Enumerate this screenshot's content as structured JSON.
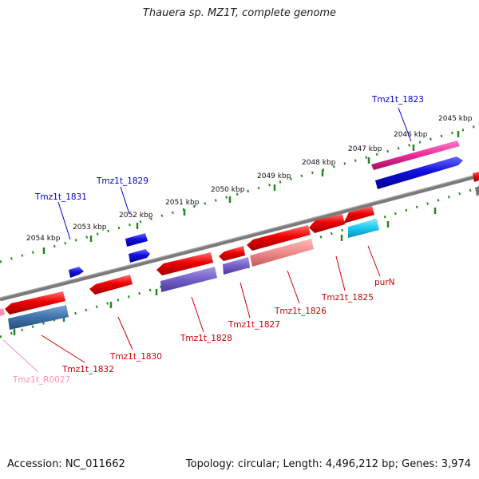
{
  "title": "Thauera sp. MZ1T, complete genome",
  "footer": {
    "accession": "Accession: NC_011662",
    "summary": "Topology: circular; Length: 4,496,212 bp; Genes: 3,974"
  },
  "scale_labels": [
    "2045 kbp",
    "2046 kbp",
    "2047 kbp",
    "2048 kbp",
    "2049 kbp",
    "2050 kbp",
    "2051 kbp",
    "2052 kbp",
    "2053 kbp",
    "2054 kbp"
  ],
  "gene_labels": {
    "tmz1t_1823": "Tmz1t_1823",
    "tmz1t_1829": "Tmz1t_1829",
    "tmz1t_1831": "Tmz1t_1831",
    "tmz1t_1825": "Tmz1t_1825",
    "tmz1t_1826": "Tmz1t_1826",
    "tmz1t_1827": "Tmz1t_1827",
    "tmz1t_1828": "Tmz1t_1828",
    "tmz1t_1830": "Tmz1t_1830",
    "tmz1t_1832": "Tmz1t_1832",
    "tmz1t_r0027": "Tmz1t_R0027",
    "purn": "purN"
  },
  "colors": {
    "forward_cds": "#ee0000",
    "reverse_cds": "#1010e0",
    "forward_label": "#cc0000",
    "reverse_label": "#0000cc",
    "rna": "#ff99bb",
    "backbone": "#777777",
    "ticks": "#228822"
  }
}
